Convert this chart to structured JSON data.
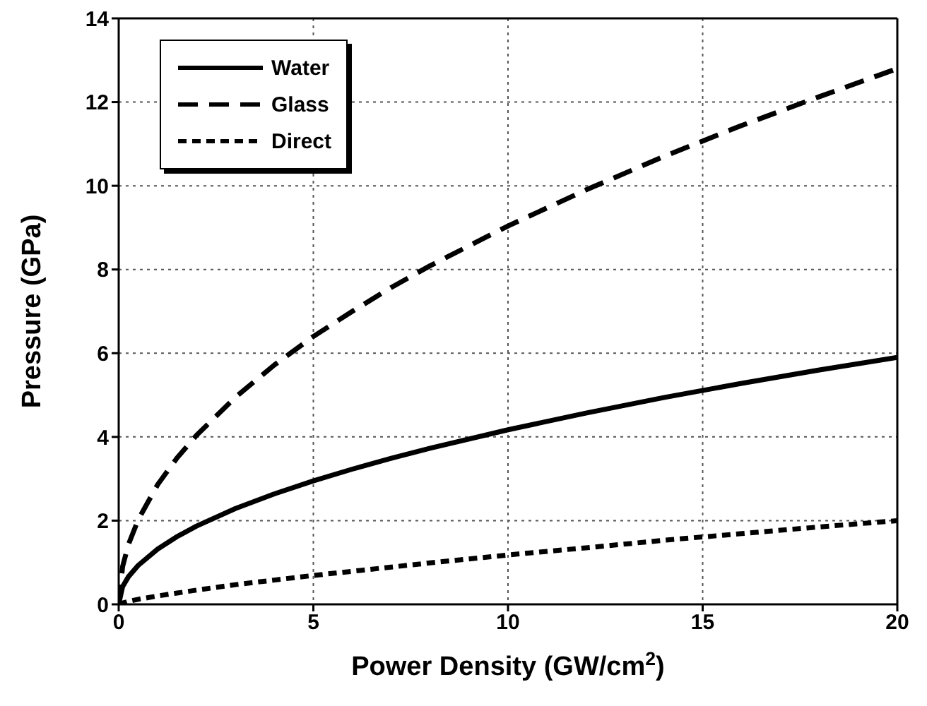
{
  "chart_data": {
    "type": "line",
    "xlabel": "Power Density  (GW/cm$^{2}$)",
    "ylabel": "Pressure (GPa)",
    "x": [
      0,
      0.1,
      0.25,
      0.5,
      1,
      1.5,
      2,
      3,
      4,
      5,
      6,
      7,
      8,
      10,
      12,
      14,
      16,
      18,
      20
    ],
    "series": [
      {
        "name": "Water",
        "color": "#000000",
        "line_style": "solid",
        "values": [
          0,
          0.42,
          0.66,
          0.93,
          1.32,
          1.62,
          1.87,
          2.29,
          2.64,
          2.95,
          3.23,
          3.49,
          3.73,
          4.17,
          4.57,
          4.94,
          5.28,
          5.6,
          5.9
        ]
      },
      {
        "name": "Glass",
        "color": "#000000",
        "line_style": "dashed",
        "values": [
          0,
          0.9,
          1.43,
          2.02,
          2.86,
          3.5,
          4.04,
          4.95,
          5.72,
          6.4,
          7.0,
          7.57,
          8.09,
          9.04,
          9.9,
          10.7,
          11.44,
          12.13,
          12.8
        ]
      },
      {
        "name": "Direct",
        "color": "#000000",
        "line_style": "dotted",
        "values": [
          0,
          0.03,
          0.07,
          0.12,
          0.2,
          0.27,
          0.34,
          0.47,
          0.58,
          0.69,
          0.79,
          0.89,
          0.99,
          1.18,
          1.35,
          1.53,
          1.69,
          1.85,
          2.0
        ]
      }
    ],
    "xlim": [
      0,
      20
    ],
    "xticks": [
      0,
      5,
      10,
      15,
      20
    ],
    "ylim": [
      0,
      14
    ],
    "yticks": [
      0,
      2,
      4,
      6,
      8,
      10,
      12,
      14
    ],
    "grid": true,
    "legend": "top left",
    "marker": "none"
  }
}
